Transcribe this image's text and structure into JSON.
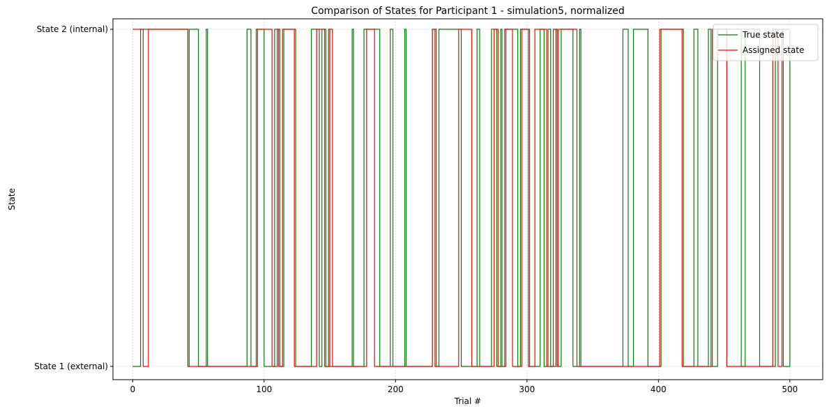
{
  "chart_data": {
    "type": "line",
    "title": "Comparison of States for Participant 1 - simulation5, normalized",
    "xlabel": "Trial #",
    "ylabel": "State",
    "xlim": [
      -15,
      525
    ],
    "ylim": [
      0,
      1
    ],
    "x_ticks": [
      0,
      100,
      200,
      300,
      400,
      500
    ],
    "y_ticks": [
      {
        "value": 0,
        "label": "State 1 (external)"
      },
      {
        "value": 1,
        "label": "State 2 (internal)"
      }
    ],
    "grid": true,
    "legend_position": "top-right",
    "series": [
      {
        "name": "True state",
        "color": "#008000",
        "step": "post",
        "points": [
          [
            0,
            0
          ],
          [
            6,
            1
          ],
          [
            42,
            0
          ],
          [
            43,
            1
          ],
          [
            50,
            0
          ],
          [
            56,
            1
          ],
          [
            57,
            0
          ],
          [
            87,
            1
          ],
          [
            90,
            0
          ],
          [
            94,
            1
          ],
          [
            100,
            0
          ],
          [
            108,
            1
          ],
          [
            112,
            0
          ],
          [
            115,
            1
          ],
          [
            124,
            0
          ],
          [
            136,
            1
          ],
          [
            142,
            0
          ],
          [
            144,
            1
          ],
          [
            147,
            0
          ],
          [
            149,
            1
          ],
          [
            150,
            0
          ],
          [
            167,
            1
          ],
          [
            168,
            0
          ],
          [
            176,
            1
          ],
          [
            188,
            0
          ],
          [
            196,
            1
          ],
          [
            198,
            0
          ],
          [
            207,
            1
          ],
          [
            208,
            0
          ],
          [
            228,
            1
          ],
          [
            231,
            0
          ],
          [
            233,
            1
          ],
          [
            250,
            0
          ],
          [
            262,
            1
          ],
          [
            264,
            0
          ],
          [
            273,
            1
          ],
          [
            277,
            0
          ],
          [
            280,
            1
          ],
          [
            281,
            0
          ],
          [
            284,
            1
          ],
          [
            293,
            0
          ],
          [
            295,
            1
          ],
          [
            302,
            0
          ],
          [
            310,
            1
          ],
          [
            313,
            0
          ],
          [
            316,
            1
          ],
          [
            318,
            0
          ],
          [
            322,
            1
          ],
          [
            323,
            0
          ],
          [
            326,
            1
          ],
          [
            335,
            0
          ],
          [
            340,
            1
          ],
          [
            341,
            0
          ],
          [
            373,
            1
          ],
          [
            377,
            0
          ],
          [
            381,
            1
          ],
          [
            392,
            0
          ],
          [
            402,
            1
          ],
          [
            419,
            0
          ],
          [
            427,
            1
          ],
          [
            430,
            0
          ],
          [
            438,
            1
          ],
          [
            440,
            0
          ],
          [
            445,
            1
          ],
          [
            463,
            0
          ],
          [
            466,
            1
          ],
          [
            477,
            0
          ],
          [
            489,
            1
          ],
          [
            495,
            0
          ],
          [
            500,
            1
          ],
          [
            500,
            0
          ]
        ]
      },
      {
        "name": "Assigned state",
        "color": "#ff0000",
        "step": "post",
        "points": [
          [
            0,
            1
          ],
          [
            8,
            0
          ],
          [
            12,
            1
          ],
          [
            42,
            0
          ],
          [
            95,
            1
          ],
          [
            106,
            0
          ],
          [
            110,
            1
          ],
          [
            111,
            0
          ],
          [
            114,
            1
          ],
          [
            123,
            0
          ],
          [
            140,
            1
          ],
          [
            146,
            0
          ],
          [
            150,
            1
          ],
          [
            152,
            0
          ],
          [
            178,
            1
          ],
          [
            184,
            0
          ],
          [
            228,
            1
          ],
          [
            230,
            0
          ],
          [
            248,
            1
          ],
          [
            258,
            0
          ],
          [
            275,
            1
          ],
          [
            278,
            0
          ],
          [
            283,
            1
          ],
          [
            289,
            0
          ],
          [
            296,
            1
          ],
          [
            301,
            0
          ],
          [
            306,
            1
          ],
          [
            315,
            0
          ],
          [
            320,
            1
          ],
          [
            323,
            0
          ],
          [
            324,
            1
          ],
          [
            338,
            0
          ],
          [
            401,
            1
          ],
          [
            418,
            0
          ],
          [
            441,
            1
          ],
          [
            452,
            0
          ],
          [
            487,
            1
          ],
          [
            491,
            0
          ],
          [
            494,
            1
          ],
          [
            500,
            1
          ]
        ]
      }
    ]
  }
}
